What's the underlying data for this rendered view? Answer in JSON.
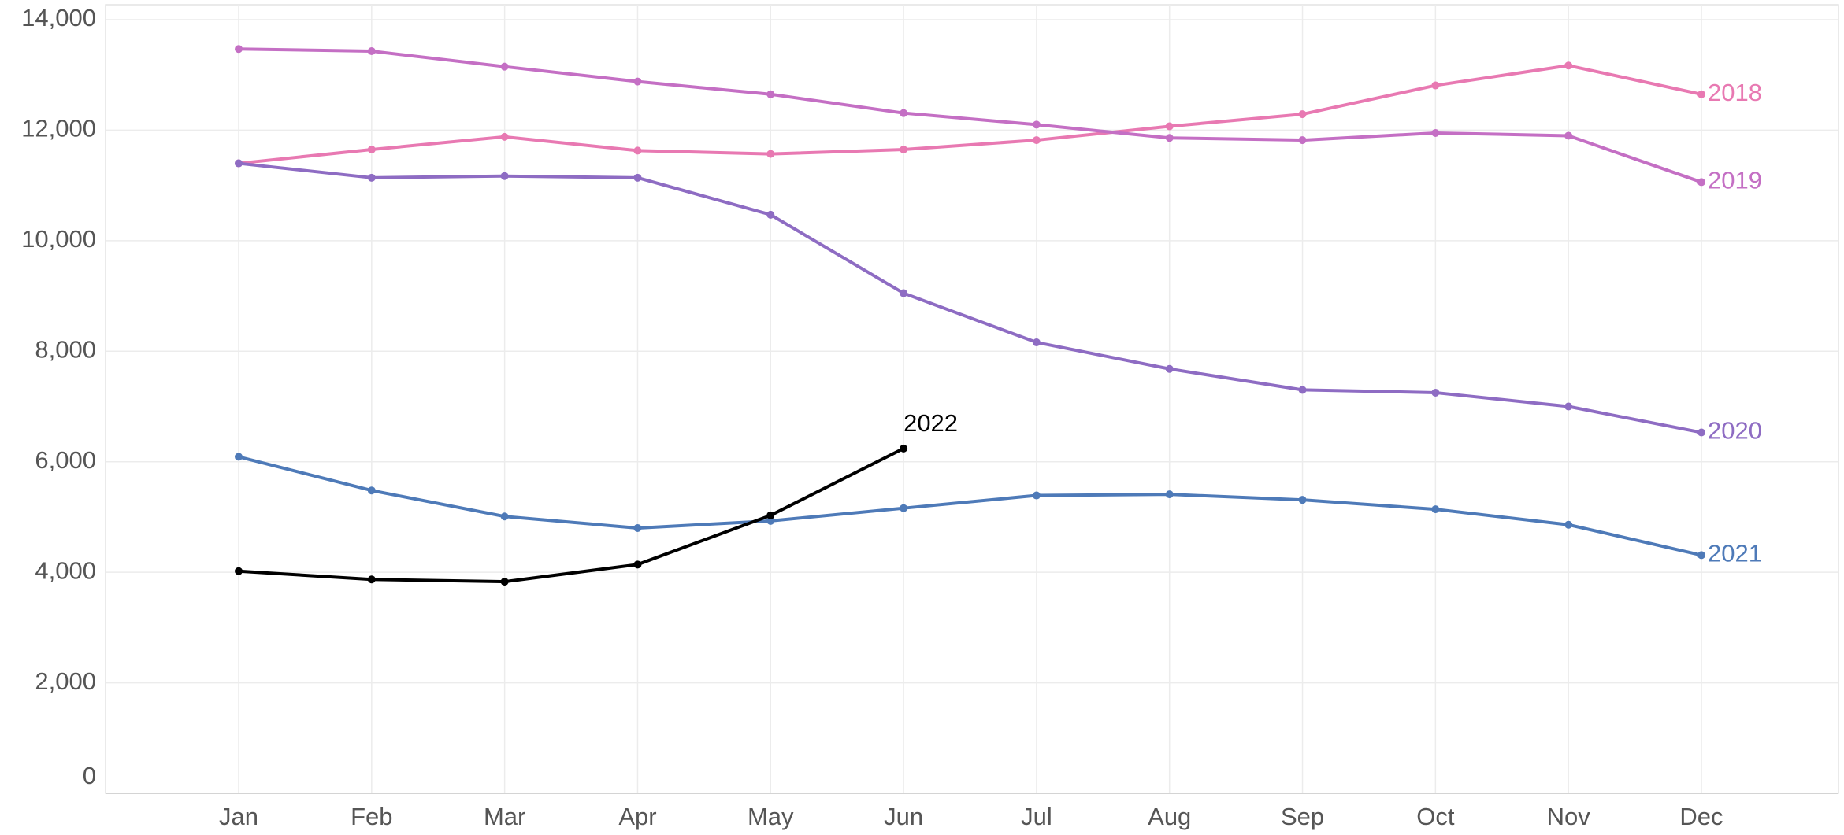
{
  "chart_data": {
    "type": "line",
    "categories": [
      "Jan",
      "Feb",
      "Mar",
      "Apr",
      "May",
      "Jun",
      "Jul",
      "Aug",
      "Sep",
      "Oct",
      "Nov",
      "Dec"
    ],
    "series": [
      {
        "name": "2018",
        "color": "#e879b2",
        "values": [
          11400,
          11650,
          11880,
          11630,
          11570,
          11650,
          11820,
          12070,
          12290,
          12810,
          13170,
          12650
        ]
      },
      {
        "name": "2019",
        "color": "#c46fc4",
        "values": [
          13470,
          13430,
          13150,
          12880,
          12650,
          12310,
          12100,
          11860,
          11820,
          11950,
          11900,
          11060
        ]
      },
      {
        "name": "2020",
        "color": "#8e6cc3",
        "values": [
          11400,
          11140,
          11170,
          11140,
          10470,
          9050,
          8160,
          7680,
          7300,
          7250,
          7000,
          6530
        ]
      },
      {
        "name": "2021",
        "color": "#4e7ab8",
        "values": [
          6090,
          5480,
          5010,
          4800,
          4930,
          5160,
          5390,
          5410,
          5310,
          5140,
          4860,
          4310
        ]
      },
      {
        "name": "2022",
        "color": "#000000",
        "values": [
          4020,
          3870,
          3830,
          4140,
          5030,
          6240,
          null,
          null,
          null,
          null,
          null,
          null
        ]
      }
    ],
    "ylim": [
      0,
      14000
    ],
    "yticks": [
      0,
      {
        "value": 2000,
        "label": "2,000"
      },
      {
        "value": 4000,
        "label": "4,000"
      },
      {
        "value": 6000,
        "label": "6,000"
      },
      {
        "value": 8000,
        "label": "8,000"
      },
      {
        "value": 10000,
        "label": "10,000"
      },
      {
        "value": 12000,
        "label": "12,000"
      },
      {
        "value": 14000,
        "label": "14,000"
      }
    ],
    "grid": true
  }
}
